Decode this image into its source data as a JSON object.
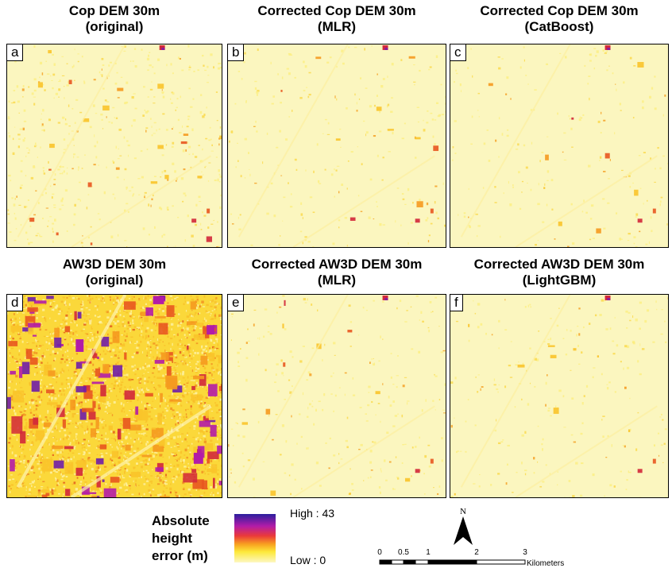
{
  "panels": [
    {
      "letter": "a",
      "title_line1": "Cop DEM 30m",
      "title_line2": "(original)",
      "intensity": 1
    },
    {
      "letter": "b",
      "title_line1": "Corrected Cop DEM 30m",
      "title_line2": "(MLR)",
      "intensity": 0.45
    },
    {
      "letter": "c",
      "title_line1": "Corrected Cop DEM 30m",
      "title_line2": "(CatBoost)",
      "intensity": 0.4
    },
    {
      "letter": "d",
      "title_line1": "AW3D DEM 30m",
      "title_line2": "(original)",
      "intensity": 3
    },
    {
      "letter": "e",
      "title_line1": "Corrected AW3D DEM 30m",
      "title_line2": "(MLR)",
      "intensity": 0.5
    },
    {
      "letter": "f",
      "title_line1": "Corrected AW3D DEM 30m",
      "title_line2": "(LightGBM)",
      "intensity": 0.45
    }
  ],
  "legend": {
    "title_line1": "Absolute",
    "title_line2": "height",
    "title_line3": "error (m)",
    "high_label": "High : 43",
    "low_label": "Low : 0",
    "colors": [
      "#2b1e9e",
      "#b21ca8",
      "#ea3a3a",
      "#f8a020",
      "#fde93a",
      "#fdf7c2"
    ]
  },
  "north_arrow": {
    "label": "N"
  },
  "scale_bar": {
    "ticks": [
      "0",
      "0.5",
      "1",
      "2",
      "3"
    ],
    "unit": "Kilometers"
  }
}
